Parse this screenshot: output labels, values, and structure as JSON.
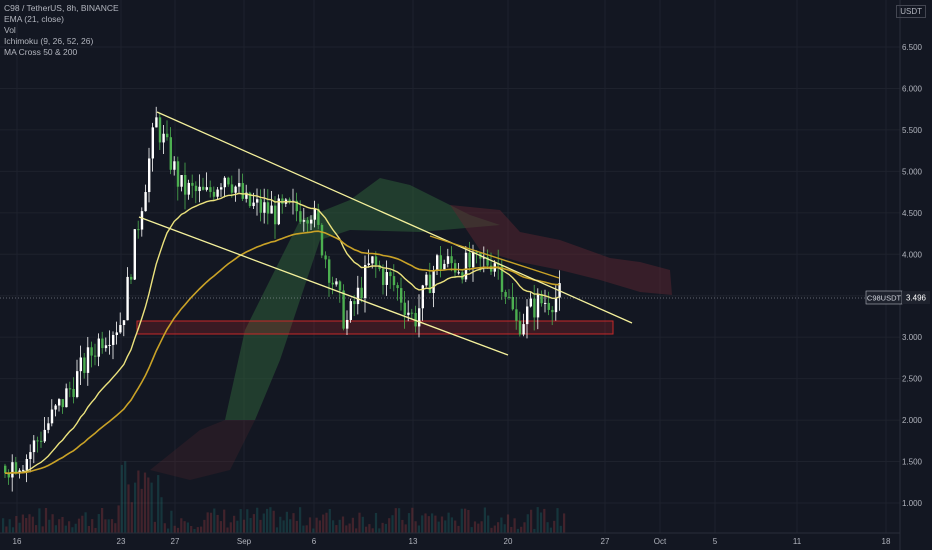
{
  "legend": {
    "title": "C98 / TetherUS, 8h, BINANCE",
    "ind1": "EMA (21, close)",
    "ind2": "Vol",
    "ind3": "Ichimoku (9, 26, 52, 26)",
    "ind4": "MA Cross 50 & 200"
  },
  "price_axis": {
    "currency": "USDT",
    "symbol_label": "C98USDT",
    "last_price": "3.496"
  },
  "colors": {
    "up": "#ffffff",
    "down": "#4caf50",
    "trendline": "#f5f19c",
    "ema": "#ebe27d",
    "ma_slow": "#c9a227",
    "cloud_green": "#2e5c38",
    "cloud_red": "#5c2630",
    "support_zone": "#c62828"
  },
  "chart_data": {
    "type": "line",
    "title": "C98 / TetherUS, 8h, BINANCE",
    "x_ticks": [
      "16",
      "23",
      "27",
      "Sep",
      "6",
      "13",
      "20",
      "27",
      "Oct",
      "5",
      "11",
      "18"
    ],
    "y_ticks": [
      "6.500",
      "6.000",
      "5.500",
      "5.000",
      "4.500",
      "4.000",
      "3.500",
      "3.000",
      "2.500",
      "2.000",
      "1.500",
      "1.000"
    ],
    "ylim": [
      0.8,
      7.0
    ],
    "last_price": 3.496,
    "price_series": {
      "name": "C98USDT",
      "x": [
        "Aug 16",
        "Aug 18",
        "Aug 20",
        "Aug 22",
        "Aug 23",
        "Aug 24",
        "Aug 25",
        "Aug 27",
        "Aug 29",
        "Aug 31",
        "Sep 2",
        "Sep 4",
        "Sep 6",
        "Sep 8",
        "Sep 10",
        "Sep 12",
        "Sep 13",
        "Sep 15",
        "Sep 17",
        "Sep 19",
        "Sep 20",
        "Sep 21",
        "Sep 22"
      ],
      "values": [
        1.45,
        1.55,
        2.2,
        3.0,
        3.2,
        4.6,
        5.6,
        4.8,
        4.7,
        5.0,
        4.6,
        4.5,
        4.55,
        3.15,
        3.9,
        3.6,
        3.2,
        3.9,
        3.85,
        3.95,
        3.15,
        3.4,
        3.5
      ]
    },
    "annotations": [
      "descending channel upper trendline",
      "descending channel lower trendline",
      "support zone 3.05–3.20",
      "EMA 21",
      "Ichimoku cloud"
    ]
  }
}
